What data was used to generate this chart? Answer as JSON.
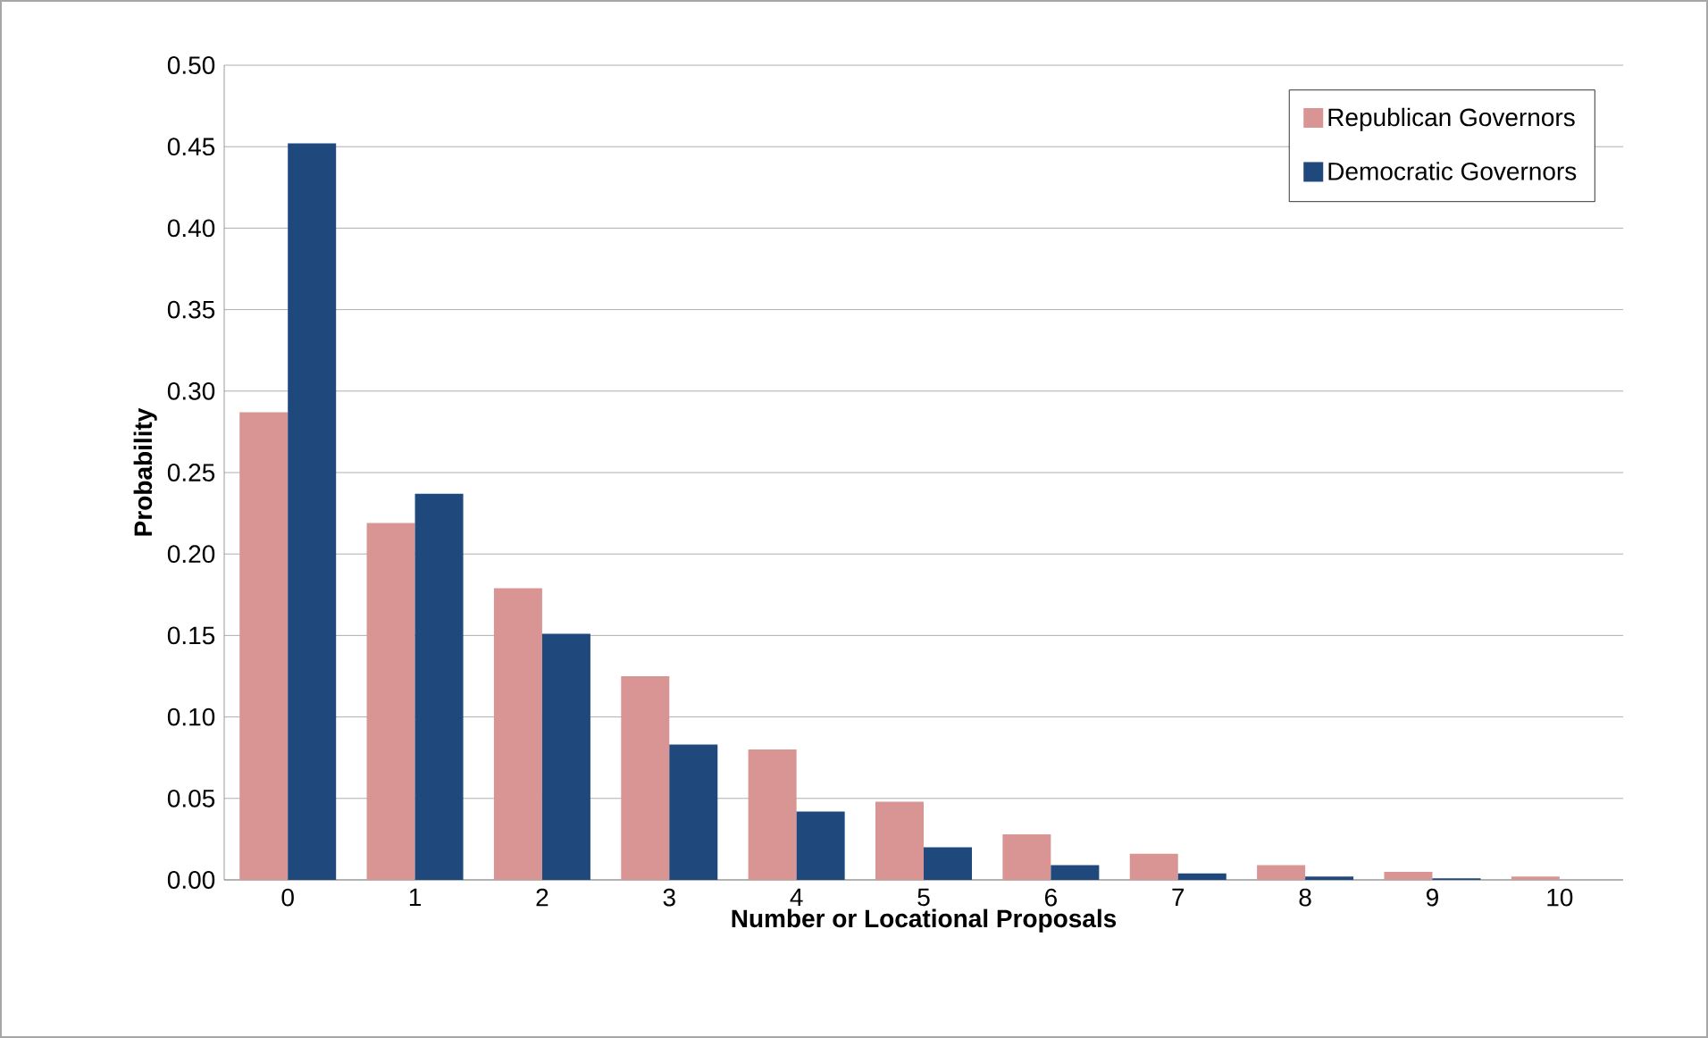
{
  "chart_data": {
    "type": "bar",
    "xlabel": "Number or Locational Proposals",
    "ylabel": "Probability",
    "categories": [
      "0",
      "1",
      "2",
      "3",
      "4",
      "5",
      "6",
      "7",
      "8",
      "9",
      "10"
    ],
    "series": [
      {
        "name": "Republican Governors",
        "color": "#d99594",
        "values": [
          0.287,
          0.219,
          0.179,
          0.125,
          0.08,
          0.048,
          0.028,
          0.016,
          0.009,
          0.005,
          0.002
        ]
      },
      {
        "name": "Democratic Governors",
        "color": "#1f497d",
        "values": [
          0.452,
          0.237,
          0.151,
          0.083,
          0.042,
          0.02,
          0.009,
          0.004,
          0.002,
          0.001,
          0.0
        ]
      }
    ],
    "ylim": [
      0,
      0.5
    ],
    "yticks": [
      {
        "value": 0,
        "label": "0.00"
      },
      {
        "value": 0.05,
        "label": "0.05"
      },
      {
        "value": 0.1,
        "label": "0.10"
      },
      {
        "value": 0.15,
        "label": "0.15"
      },
      {
        "value": 0.2,
        "label": "0.20"
      },
      {
        "value": 0.25,
        "label": "0.25"
      },
      {
        "value": 0.3,
        "label": "0.30"
      },
      {
        "value": 0.35,
        "label": "0.35"
      },
      {
        "value": 0.4,
        "label": "0.40"
      },
      {
        "value": 0.45,
        "label": "0.45"
      },
      {
        "value": 0.5,
        "label": "0.50"
      }
    ],
    "grid": "y",
    "legend": "top right"
  }
}
